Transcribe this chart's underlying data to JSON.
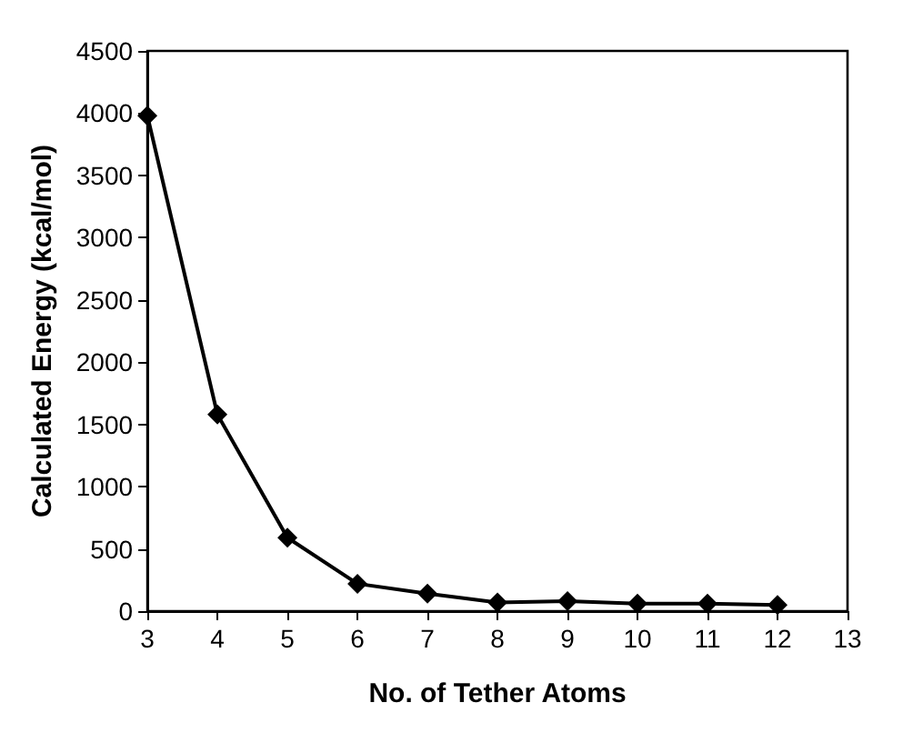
{
  "chart_data": {
    "type": "line",
    "xlabel": "No. of Tether Atoms",
    "ylabel": "Calculated Energy (kcal/mol)",
    "x": [
      3,
      4,
      5,
      6,
      7,
      8,
      9,
      10,
      11,
      12
    ],
    "series": [
      {
        "color": "#000000",
        "values": [
          3980,
          1580,
          590,
          220,
          140,
          70,
          80,
          60,
          60,
          50
        ]
      }
    ],
    "xlim": [
      3,
      13
    ],
    "xticks": [
      3,
      4,
      5,
      6,
      7,
      8,
      9,
      10,
      11,
      12,
      13
    ],
    "ylim": [
      0,
      4500
    ],
    "yticks": [
      0,
      500,
      1000,
      1500,
      2000,
      2500,
      3000,
      3500,
      4000,
      4500
    ],
    "grid": false,
    "marker": "diamond",
    "line_style": "solid"
  }
}
